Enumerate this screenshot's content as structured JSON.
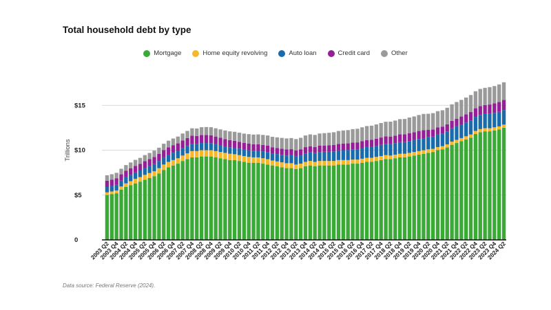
{
  "title": "Total household debt by type",
  "source": "Data source: Federal Reserve (2024).",
  "legend": [
    {
      "name": "Mortgage",
      "color": "#3aa935"
    },
    {
      "name": "Home equity revolving",
      "color": "#f6b82a"
    },
    {
      "name": "Auto loan",
      "color": "#1a6bab"
    },
    {
      "name": "Credit card",
      "color": "#951f96"
    },
    {
      "name": "Other",
      "color": "#9a9a9a"
    }
  ],
  "chart_data": {
    "type": "bar",
    "stacked": true,
    "ylabel": "Trillions",
    "ylim": [
      0,
      20
    ],
    "yticks": [
      {
        "value": 0,
        "label": "0"
      },
      {
        "value": 5,
        "label": "$5"
      },
      {
        "value": 10,
        "label": "$10"
      },
      {
        "value": 15,
        "label": "$15"
      }
    ],
    "grid": true,
    "categories": [
      "2003 Q2",
      "2003 Q3",
      "2003 Q4",
      "2004 Q1",
      "2004 Q2",
      "2004 Q3",
      "2004 Q4",
      "2005 Q1",
      "2005 Q2",
      "2005 Q3",
      "2005 Q4",
      "2006 Q1",
      "2006 Q2",
      "2006 Q3",
      "2006 Q4",
      "2007 Q1",
      "2007 Q2",
      "2007 Q3",
      "2007 Q4",
      "2008 Q1",
      "2008 Q2",
      "2008 Q3",
      "2008 Q4",
      "2009 Q1",
      "2009 Q2",
      "2009 Q3",
      "2009 Q4",
      "2010 Q1",
      "2010 Q2",
      "2010 Q3",
      "2010 Q4",
      "2011 Q1",
      "2011 Q2",
      "2011 Q3",
      "2011 Q4",
      "2012 Q1",
      "2012 Q2",
      "2012 Q3",
      "2012 Q4",
      "2013 Q1",
      "2013 Q2",
      "2013 Q3",
      "2013 Q4",
      "2014 Q1",
      "2014 Q2",
      "2014 Q3",
      "2014 Q4",
      "2015 Q1",
      "2015 Q2",
      "2015 Q3",
      "2015 Q4",
      "2016 Q1",
      "2016 Q2",
      "2016 Q3",
      "2016 Q4",
      "2017 Q1",
      "2017 Q2",
      "2017 Q3",
      "2017 Q4",
      "2018 Q1",
      "2018 Q2",
      "2018 Q3",
      "2018 Q4",
      "2019 Q1",
      "2019 Q2",
      "2019 Q3",
      "2019 Q4",
      "2020 Q1",
      "2020 Q2",
      "2020 Q3",
      "2020 Q4",
      "2021 Q1",
      "2021 Q2",
      "2021 Q3",
      "2021 Q4",
      "2022 Q1",
      "2022 Q2",
      "2022 Q3",
      "2022 Q4",
      "2023 Q1",
      "2023 Q2",
      "2023 Q3",
      "2023 Q4",
      "2024 Q1",
      "2024 Q2"
    ],
    "tick_labels": [
      "2003 Q2",
      "2003 Q4",
      "2004 Q2",
      "2004 Q4",
      "2005 Q2",
      "2005 Q4",
      "2006 Q2",
      "2006 Q4",
      "2007 Q2",
      "2007 Q4",
      "2008 Q2",
      "2008 Q4",
      "2009 Q2",
      "2009 Q4",
      "2010 Q2",
      "2010 Q4",
      "2011 Q2",
      "2011 Q4",
      "2012 Q2",
      "2012 Q4",
      "2013 Q2",
      "2013 Q4",
      "2014 Q2",
      "2014 Q4",
      "2015 Q2",
      "2015 Q4",
      "2016 Q2",
      "2016 Q4",
      "2017 Q2",
      "2017 Q4",
      "2018 Q2",
      "2018 Q4",
      "2019 Q2",
      "2019 Q4",
      "2020 Q2",
      "2020 Q4",
      "2021 Q2",
      "2021 Q4",
      "2022 Q2",
      "2022 Q4",
      "2023 Q2",
      "2023 Q4",
      "2024 Q2"
    ],
    "series": [
      {
        "name": "Mortgage",
        "values": [
          5.0,
          5.1,
          5.2,
          5.6,
          5.9,
          6.1,
          6.3,
          6.5,
          6.7,
          6.9,
          7.1,
          7.4,
          7.8,
          8.1,
          8.3,
          8.5,
          8.8,
          9.0,
          9.2,
          9.2,
          9.3,
          9.3,
          9.3,
          9.2,
          9.1,
          9.0,
          8.9,
          8.9,
          8.8,
          8.7,
          8.6,
          8.6,
          8.6,
          8.5,
          8.4,
          8.3,
          8.2,
          8.1,
          8.0,
          8.0,
          7.9,
          8.0,
          8.2,
          8.3,
          8.2,
          8.3,
          8.3,
          8.3,
          8.3,
          8.4,
          8.4,
          8.4,
          8.5,
          8.5,
          8.6,
          8.7,
          8.7,
          8.8,
          8.9,
          9.0,
          9.0,
          9.1,
          9.2,
          9.2,
          9.3,
          9.4,
          9.5,
          9.6,
          9.7,
          9.8,
          10.0,
          10.1,
          10.3,
          10.6,
          10.8,
          11.0,
          11.2,
          11.4,
          11.8,
          12.0,
          12.1,
          12.1,
          12.2,
          12.3,
          12.5
        ]
      },
      {
        "name": "Home equity revolving",
        "values": [
          0.3,
          0.3,
          0.3,
          0.35,
          0.4,
          0.45,
          0.5,
          0.5,
          0.55,
          0.55,
          0.55,
          0.6,
          0.6,
          0.6,
          0.6,
          0.6,
          0.6,
          0.65,
          0.7,
          0.7,
          0.7,
          0.7,
          0.7,
          0.7,
          0.7,
          0.7,
          0.7,
          0.65,
          0.65,
          0.65,
          0.65,
          0.6,
          0.6,
          0.6,
          0.6,
          0.55,
          0.55,
          0.55,
          0.55,
          0.55,
          0.5,
          0.5,
          0.5,
          0.5,
          0.5,
          0.5,
          0.5,
          0.5,
          0.5,
          0.5,
          0.5,
          0.5,
          0.45,
          0.45,
          0.45,
          0.45,
          0.45,
          0.45,
          0.45,
          0.45,
          0.4,
          0.4,
          0.4,
          0.4,
          0.4,
          0.4,
          0.4,
          0.4,
          0.4,
          0.35,
          0.35,
          0.35,
          0.35,
          0.35,
          0.35,
          0.35,
          0.35,
          0.35,
          0.35,
          0.35,
          0.35,
          0.35,
          0.35,
          0.35,
          0.35
        ]
      },
      {
        "name": "Auto loan",
        "values": [
          0.6,
          0.62,
          0.64,
          0.66,
          0.68,
          0.7,
          0.72,
          0.74,
          0.76,
          0.78,
          0.8,
          0.8,
          0.8,
          0.8,
          0.82,
          0.82,
          0.82,
          0.82,
          0.82,
          0.8,
          0.8,
          0.8,
          0.78,
          0.76,
          0.74,
          0.72,
          0.72,
          0.72,
          0.72,
          0.72,
          0.74,
          0.74,
          0.76,
          0.78,
          0.8,
          0.8,
          0.82,
          0.84,
          0.86,
          0.88,
          0.9,
          0.92,
          0.94,
          0.96,
          0.98,
          1.0,
          1.02,
          1.04,
          1.06,
          1.08,
          1.1,
          1.12,
          1.14,
          1.16,
          1.18,
          1.2,
          1.2,
          1.22,
          1.24,
          1.26,
          1.28,
          1.28,
          1.3,
          1.3,
          1.32,
          1.32,
          1.34,
          1.34,
          1.34,
          1.36,
          1.38,
          1.4,
          1.44,
          1.48,
          1.5,
          1.52,
          1.54,
          1.56,
          1.56,
          1.58,
          1.58,
          1.6,
          1.6,
          1.62,
          1.62
        ]
      },
      {
        "name": "Credit card",
        "values": [
          0.7,
          0.7,
          0.72,
          0.7,
          0.72,
          0.74,
          0.74,
          0.74,
          0.76,
          0.78,
          0.8,
          0.78,
          0.8,
          0.82,
          0.84,
          0.84,
          0.86,
          0.88,
          0.9,
          0.88,
          0.9,
          0.9,
          0.88,
          0.86,
          0.84,
          0.82,
          0.8,
          0.78,
          0.76,
          0.74,
          0.74,
          0.72,
          0.7,
          0.7,
          0.7,
          0.68,
          0.68,
          0.68,
          0.68,
          0.68,
          0.68,
          0.68,
          0.7,
          0.68,
          0.68,
          0.7,
          0.7,
          0.7,
          0.72,
          0.72,
          0.74,
          0.74,
          0.76,
          0.76,
          0.78,
          0.78,
          0.8,
          0.8,
          0.82,
          0.82,
          0.84,
          0.84,
          0.86,
          0.86,
          0.88,
          0.88,
          0.9,
          0.9,
          0.82,
          0.8,
          0.8,
          0.78,
          0.8,
          0.84,
          0.86,
          0.88,
          0.9,
          0.94,
          0.96,
          0.98,
          1.0,
          1.04,
          1.06,
          1.1,
          1.14
        ]
      },
      {
        "name": "Other",
        "values": [
          0.6,
          0.6,
          0.62,
          0.62,
          0.64,
          0.64,
          0.66,
          0.66,
          0.68,
          0.68,
          0.7,
          0.7,
          0.72,
          0.74,
          0.74,
          0.76,
          0.78,
          0.8,
          0.82,
          0.84,
          0.86,
          0.88,
          0.9,
          0.92,
          0.94,
          0.96,
          0.98,
          1.0,
          1.02,
          1.04,
          1.06,
          1.08,
          1.1,
          1.12,
          1.14,
          1.16,
          1.18,
          1.2,
          1.22,
          1.24,
          1.26,
          1.28,
          1.3,
          1.32,
          1.34,
          1.36,
          1.38,
          1.4,
          1.42,
          1.44,
          1.46,
          1.48,
          1.5,
          1.52,
          1.54,
          1.56,
          1.58,
          1.6,
          1.62,
          1.64,
          1.66,
          1.68,
          1.7,
          1.72,
          1.74,
          1.76,
          1.78,
          1.8,
          1.8,
          1.82,
          1.82,
          1.82,
          1.84,
          1.84,
          1.86,
          1.86,
          1.88,
          1.9,
          1.9,
          1.92,
          1.92,
          1.94,
          1.94,
          1.96,
          1.96
        ]
      }
    ]
  }
}
